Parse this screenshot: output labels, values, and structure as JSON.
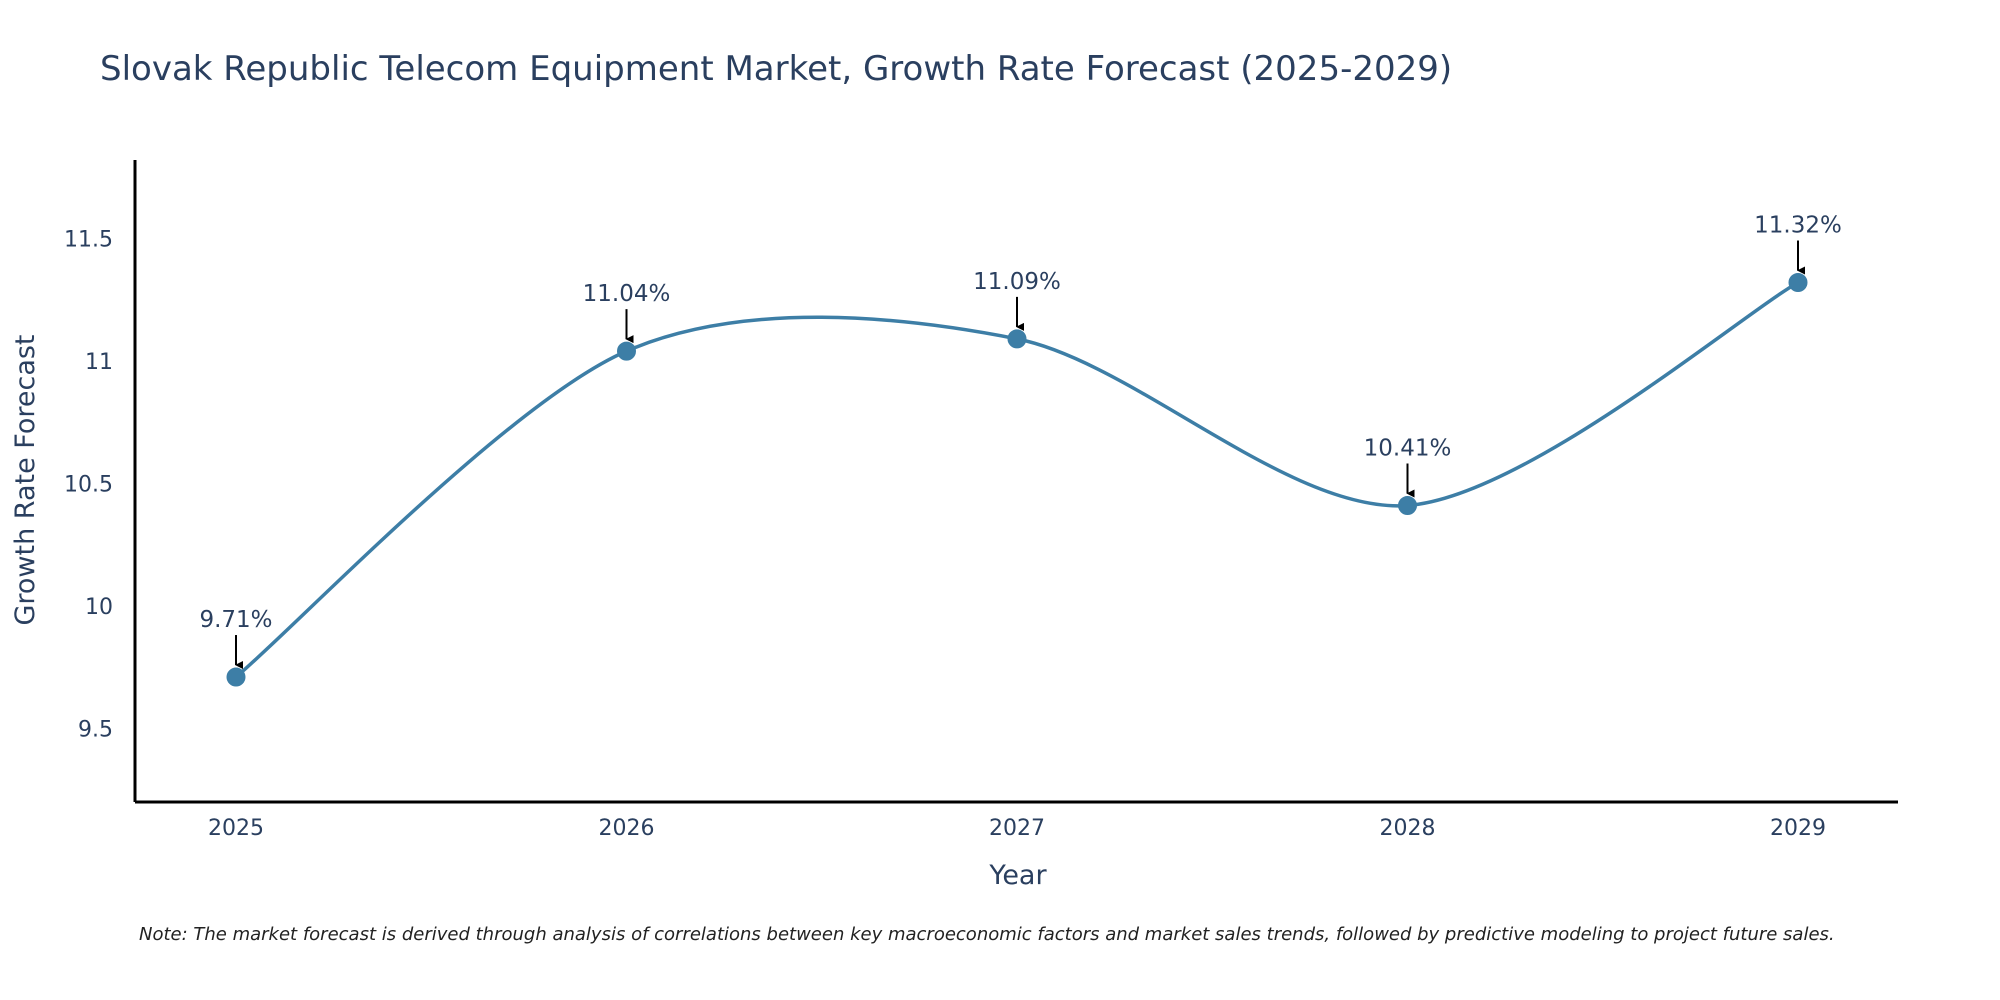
{
  "chart_data": {
    "type": "line",
    "title": "Slovak Republic Telecom Equipment Market, Growth Rate Forecast (2025-2029)",
    "xlabel": "Year",
    "ylabel": "Growth Rate Forecast",
    "categories": [
      "2025",
      "2026",
      "2027",
      "2028",
      "2029"
    ],
    "values": [
      9.71,
      11.04,
      11.09,
      10.41,
      11.32
    ],
    "annotations": [
      "9.71%",
      "11.04%",
      "11.09%",
      "10.41%",
      "11.32%"
    ],
    "yticks": [
      9.5,
      10,
      10.5,
      11,
      11.5
    ],
    "ytick_labels": [
      "9.5",
      "10",
      "10.5",
      "11",
      "11.5"
    ],
    "ylim": [
      9.2,
      11.82
    ],
    "line_shape": "spline",
    "grid": false,
    "note": "Note: The market forecast is derived through analysis of correlations between key macroeconomic factors and market sales trends, followed by predictive modeling to project future sales."
  },
  "colors": {
    "line": "#3d7ea6",
    "marker": "#3d7ea6",
    "text": "#2a3f5f",
    "axis": "#000000"
  }
}
